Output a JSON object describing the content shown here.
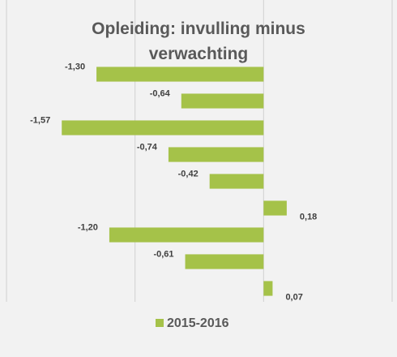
{
  "chart_data": {
    "type": "hbar",
    "title": "Opleiding: invulling minus verwachting",
    "series": [
      {
        "name": "2015-2016",
        "color": "#a5c249",
        "values": [
          -1.3,
          -0.64,
          -1.57,
          -0.74,
          -0.42,
          0.18,
          -1.2,
          -0.61,
          0.07
        ],
        "value_labels": [
          "-1,30",
          "-0,64",
          "-1,57",
          "-0,74",
          "-0,42",
          "0,18",
          "-1,20",
          "-0,61",
          "0,07"
        ]
      }
    ],
    "xlim": [
      -2,
      1
    ],
    "xticks": [
      -2,
      -1,
      0,
      1
    ],
    "grid": true,
    "legend": "bottom"
  }
}
